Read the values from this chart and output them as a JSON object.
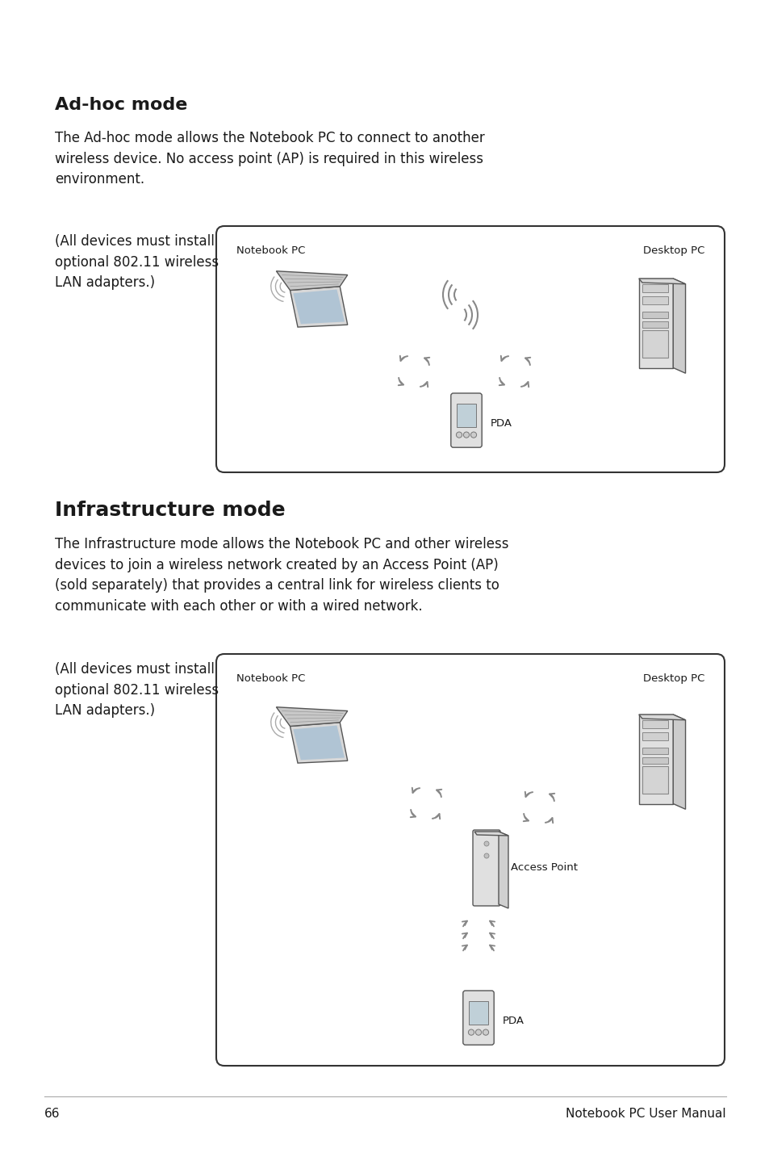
{
  "bg_color": "#ffffff",
  "page_num": "66",
  "footer_text": "Notebook PC User Manual",
  "section1_title": "Ad-hoc mode",
  "section1_body": "The Ad-hoc mode allows the Notebook PC to connect to another\nwireless device. No access point (AP) is required in this wireless\nenvironment.",
  "section1_side_note": "(All devices must install\noptional 802.11 wireless\nLAN adapters.)",
  "section1_diagram_labels": [
    "Notebook PC",
    "Desktop PC",
    "PDA"
  ],
  "section2_title": "Infrastructure mode",
  "section2_body": "The Infrastructure mode allows the Notebook PC and other wireless\ndevices to join a wireless network created by an Access Point (AP)\n(sold separately) that provides a central link for wireless clients to\ncommunicate with each other or with a wired network.",
  "section2_side_note": "(All devices must install\noptional 802.11 wireless\nLAN adapters.)",
  "section2_diagram_labels": [
    "Notebook PC",
    "Desktop PC",
    "Access Point",
    "PDA"
  ],
  "text_color": "#1a1a1a",
  "icon_color": "#555555",
  "icon_fill": "#e8e8e8",
  "arrow_color": "#888888",
  "diagram_border_color": "#333333",
  "diagram_bg": "#ffffff",
  "title_fontsize": 16,
  "body_fontsize": 12,
  "note_fontsize": 12,
  "diagram_label_fontsize": 9.5,
  "footer_fontsize": 11
}
